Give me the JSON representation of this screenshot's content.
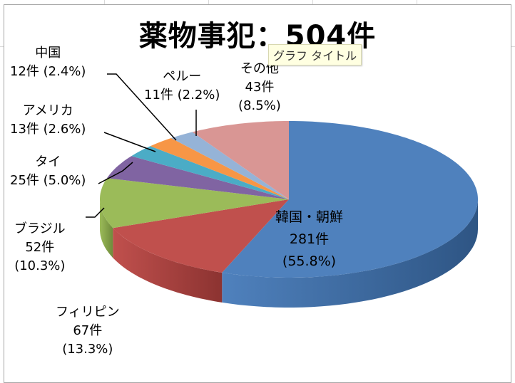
{
  "chart_data": {
    "type": "pie",
    "title": "薬物事犯：504件",
    "slices": [
      {
        "name": "韓国・朝鮮",
        "value": 281,
        "percent": "55.8%",
        "label_count": "281件",
        "label_pct": "(55.8%)",
        "color": "#4F81BD",
        "side": "#2E5584"
      },
      {
        "name": "フィリピン",
        "value": 67,
        "percent": "13.3%",
        "label_count": "67件",
        "label_pct": "(13.3%)",
        "color": "#C0504D",
        "side": "#8C3331"
      },
      {
        "name": "ブラジル",
        "value": 52,
        "percent": "10.3%",
        "label_count": "52件",
        "label_pct": "(10.3%)",
        "color": "#9BBB59",
        "side": "#6F8A3B"
      },
      {
        "name": "タイ",
        "value": 25,
        "percent": "5.0%",
        "label_count": "25件 (5.0%)",
        "label_pct": "",
        "color": "#8064A2",
        "side": "#5B4577"
      },
      {
        "name": "アメリカ",
        "value": 13,
        "percent": "2.6%",
        "label_count": "13件 (2.6%)",
        "label_pct": "",
        "color": "#4BACC6",
        "side": "#2F7F95"
      },
      {
        "name": "中国",
        "value": 12,
        "percent": "2.4%",
        "label_count": "12件 (2.4%)",
        "label_pct": "",
        "color": "#F79646",
        "side": "#B86A2A"
      },
      {
        "name": "ペルー",
        "value": 11,
        "percent": "2.2%",
        "label_count": "11件 (2.2%)",
        "label_pct": "",
        "color": "#95B3D7",
        "side": "#6884A6"
      },
      {
        "name": "その他",
        "value": 43,
        "percent": "8.5%",
        "label_count": "43件",
        "label_pct": "(8.5%)",
        "color": "#D99694",
        "side": "#A86A68"
      }
    ]
  },
  "tooltip": "グラフ タイトル"
}
